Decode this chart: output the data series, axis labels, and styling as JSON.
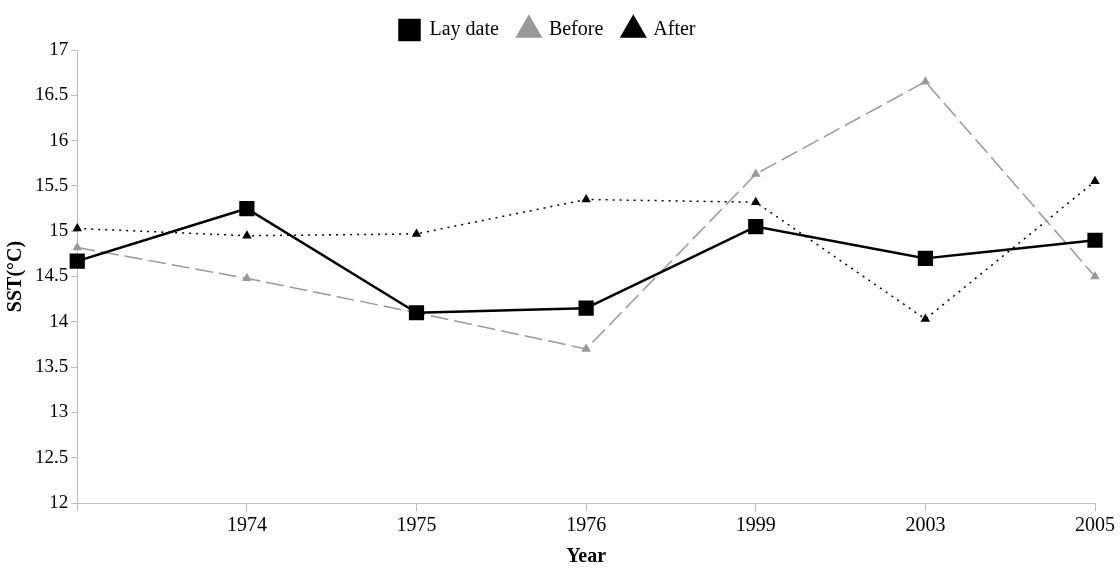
{
  "chart_data": {
    "type": "line",
    "xlabel": "Year",
    "ylabel": "SST(°C)",
    "categories": [
      null,
      "1974",
      "1975",
      "1976",
      "1999",
      "2003",
      "2005"
    ],
    "series": [
      {
        "name": "Lay date",
        "color": "#000000",
        "marker": "square",
        "line_style": "solid",
        "values": [
          14.67,
          15.25,
          14.1,
          14.15,
          15.05,
          14.7,
          14.9
        ]
      },
      {
        "name": "Before",
        "color": "#999999",
        "marker": "triangle",
        "line_style": "dashed",
        "values": [
          14.82,
          14.48,
          14.1,
          13.7,
          15.63,
          16.65,
          14.5
        ]
      },
      {
        "name": "After",
        "color": "#000000",
        "marker": "triangle",
        "line_style": "dotted",
        "values": [
          15.03,
          14.95,
          14.97,
          15.35,
          15.32,
          14.03,
          15.55
        ]
      }
    ],
    "ylim": [
      12,
      17
    ],
    "yticks": [
      12,
      12.5,
      13,
      13.5,
      14,
      14.5,
      15,
      15.5,
      16,
      16.5,
      17
    ],
    "grid": false,
    "legend": "top"
  }
}
